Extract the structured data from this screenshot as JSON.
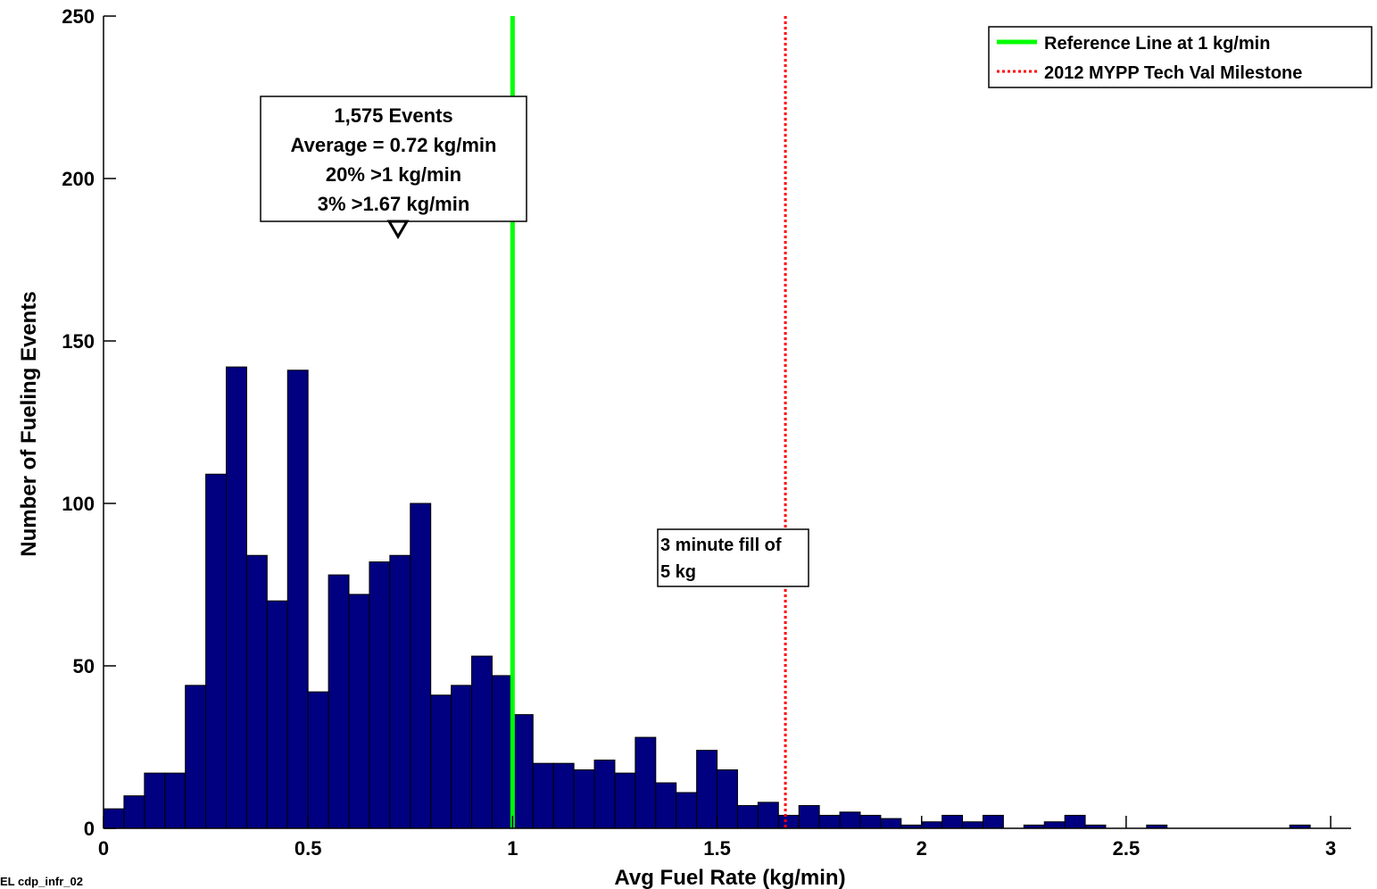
{
  "chart_data": {
    "type": "bar",
    "xlabel": "Avg Fuel Rate (kg/min)",
    "ylabel": "Number of Fueling Events",
    "xlim": [
      0,
      3.05
    ],
    "ylim": [
      0,
      250
    ],
    "xticks": [
      0,
      0.5,
      1,
      1.5,
      2,
      2.5,
      3
    ],
    "xtick_labels": [
      "0",
      "0.5",
      "1",
      "1.5",
      "2",
      "2.5",
      "3"
    ],
    "yticks": [
      0,
      50,
      100,
      150,
      200,
      250
    ],
    "ytick_labels": [
      "0",
      "50",
      "100",
      "150",
      "200",
      "250"
    ],
    "grid": false,
    "legend_position": "top-right",
    "bar_color": "#000080",
    "bin_width": 0.05,
    "bin_start": 0.0,
    "values": [
      6,
      10,
      17,
      17,
      44,
      109,
      142,
      84,
      70,
      141,
      42,
      78,
      72,
      82,
      84,
      100,
      41,
      44,
      53,
      47,
      35,
      20,
      20,
      18,
      21,
      17,
      28,
      14,
      11,
      24,
      18,
      7,
      8,
      4,
      7,
      4,
      5,
      4,
      3,
      1,
      2,
      4,
      2,
      4,
      0,
      1,
      2,
      4,
      1,
      0,
      0,
      1,
      0,
      0,
      0,
      0,
      0,
      0,
      1
    ],
    "reference_lines": [
      {
        "label": "Reference Line at 1 kg/min",
        "x": 1.0,
        "color": "#00ff00",
        "style": "solid"
      },
      {
        "label": "2012 MYPP Tech Val Milestone",
        "x": 1.667,
        "color": "#ff0000",
        "style": "dotted"
      }
    ],
    "annotations": {
      "stats": [
        "1,575 Events",
        "Average = 0.72 kg/min",
        "20% >1 kg/min",
        "3% >1.67 kg/min"
      ],
      "stats_marker_x": 0.72,
      "fill_note": [
        "3 minute fill of",
        "5 kg"
      ]
    }
  },
  "footer": "EL cdp_infr_02"
}
